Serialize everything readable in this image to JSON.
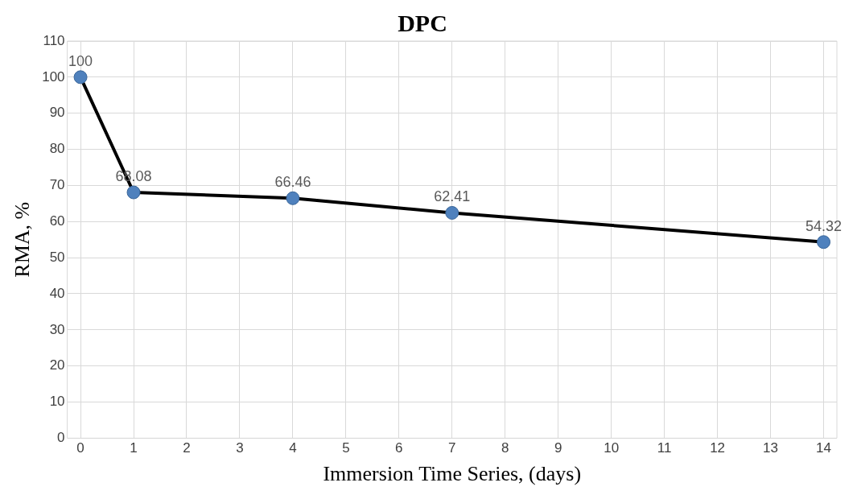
{
  "chart_data": {
    "type": "line",
    "title": "DPC",
    "xlabel": "Immersion Time Series, (days)",
    "ylabel": "RMA, %",
    "x": [
      0,
      1,
      4,
      7,
      14
    ],
    "series": [
      {
        "color": "#000000",
        "values": [
          100,
          68.08,
          66.46,
          62.41,
          54.32
        ]
      }
    ],
    "xlim": [
      -0.25,
      14.25
    ],
    "xticks": [
      0,
      1,
      2,
      3,
      4,
      5,
      6,
      7,
      8,
      9,
      10,
      11,
      12,
      13,
      14
    ],
    "ylim": [
      0,
      110
    ],
    "yticks": [
      0,
      10,
      20,
      30,
      40,
      50,
      60,
      70,
      80,
      90,
      100,
      110
    ],
    "grid": true,
    "legend": false,
    "marker": "circle",
    "line_style": "solid",
    "data_labels": true
  }
}
